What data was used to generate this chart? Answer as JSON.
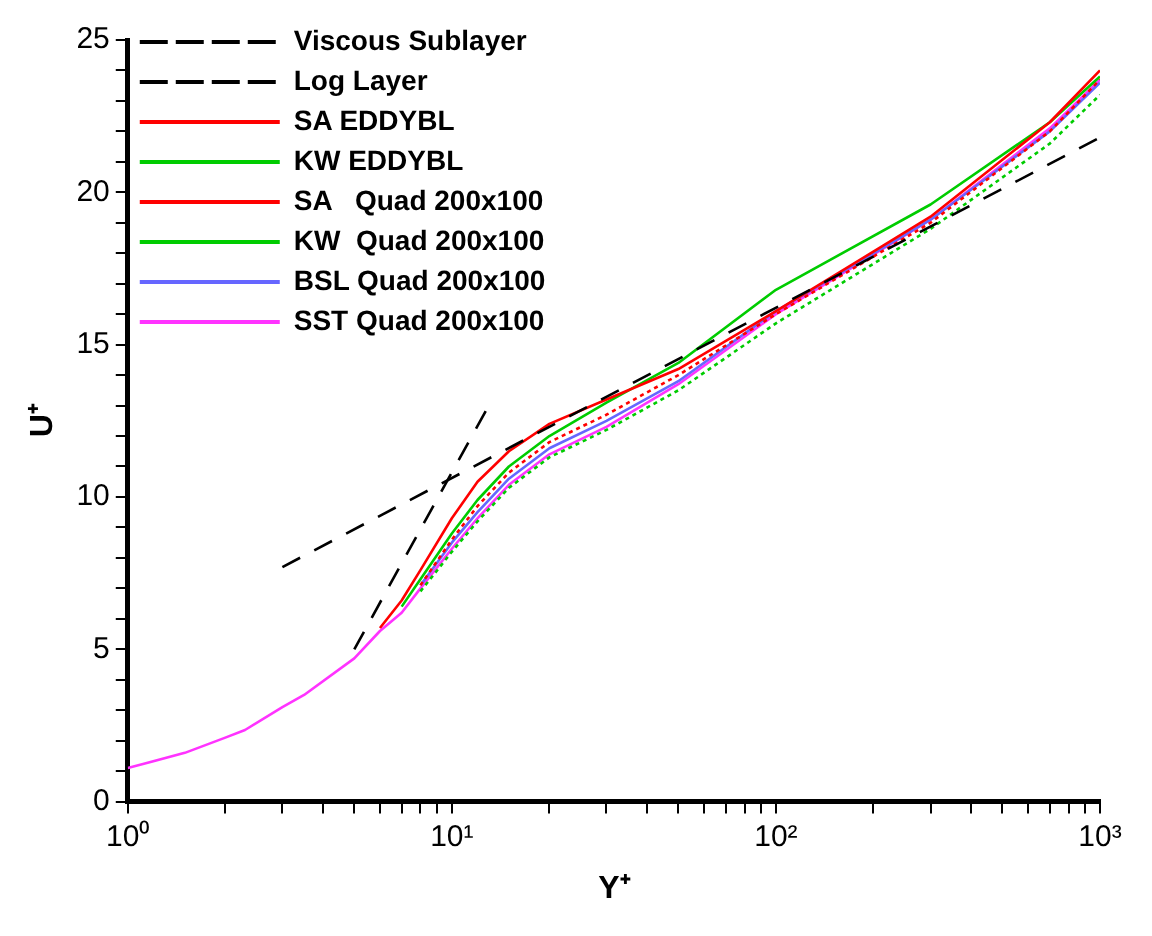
{
  "chart_data": {
    "type": "line",
    "xlabel": "Y⁺",
    "ylabel": "U⁺",
    "log": "x",
    "grid": false,
    "legend": "top left",
    "marker": "none",
    "xlim": [
      1,
      1000
    ],
    "xticks": [
      {
        "value": 1,
        "label": "10⁰"
      },
      {
        "value": 2,
        "label": null
      },
      {
        "value": 3,
        "label": null
      },
      {
        "value": 4,
        "label": null
      },
      {
        "value": 5,
        "label": null
      },
      {
        "value": 6,
        "label": null
      },
      {
        "value": 7,
        "label": null
      },
      {
        "value": 8,
        "label": null
      },
      {
        "value": 9,
        "label": null
      },
      {
        "value": 10,
        "label": "10¹"
      },
      {
        "value": 20,
        "label": null
      },
      {
        "value": 30,
        "label": null
      },
      {
        "value": 40,
        "label": null
      },
      {
        "value": 50,
        "label": null
      },
      {
        "value": 60,
        "label": null
      },
      {
        "value": 70,
        "label": null
      },
      {
        "value": 80,
        "label": null
      },
      {
        "value": 90,
        "label": null
      },
      {
        "value": 100,
        "label": "10²"
      },
      {
        "value": 200,
        "label": null
      },
      {
        "value": 300,
        "label": null
      },
      {
        "value": 400,
        "label": null
      },
      {
        "value": 500,
        "label": null
      },
      {
        "value": 600,
        "label": null
      },
      {
        "value": 700,
        "label": null
      },
      {
        "value": 800,
        "label": null
      },
      {
        "value": 900,
        "label": null
      },
      {
        "value": 1000,
        "label": "10³"
      }
    ],
    "ylim": [
      0,
      25
    ],
    "yticks": [
      0,
      {
        "value": 1,
        "label": null
      },
      {
        "value": 2,
        "label": null
      },
      {
        "value": 3,
        "label": null
      },
      {
        "value": 4,
        "label": null
      },
      5,
      {
        "value": 6,
        "label": null
      },
      {
        "value": 7,
        "label": null
      },
      {
        "value": 8,
        "label": null
      },
      {
        "value": 9,
        "label": null
      },
      10,
      {
        "value": 11,
        "label": null
      },
      {
        "value": 12,
        "label": null
      },
      {
        "value": 13,
        "label": null
      },
      {
        "value": 14,
        "label": null
      },
      15,
      {
        "value": 16,
        "label": null
      },
      {
        "value": 17,
        "label": null
      },
      {
        "value": 18,
        "label": null
      },
      {
        "value": 19,
        "label": null
      },
      20,
      {
        "value": 21,
        "label": null
      },
      {
        "value": 22,
        "label": null
      },
      {
        "value": 23,
        "label": null
      },
      {
        "value": 24,
        "label": null
      },
      25
    ],
    "series": [
      {
        "name": "Viscous Sublayer",
        "color": "#000000",
        "line_style": "dashed",
        "x": [
          5,
          13
        ],
        "values": [
          5,
          13
        ]
      },
      {
        "name": "Log Layer",
        "color": "#000000",
        "line_style": "dashed",
        "x": [
          3,
          1000
        ],
        "values": [
          7.7,
          21.8
        ]
      },
      {
        "name": "SA EDDYBL",
        "color": "#ff0000",
        "line_style": "dotted",
        "x": [
          8,
          10,
          12,
          15,
          20,
          30,
          50,
          100,
          300,
          700,
          1000
        ],
        "values": [
          7.1,
          8.6,
          9.7,
          10.8,
          11.8,
          12.7,
          14.0,
          16.0,
          19.0,
          22.0,
          23.7
        ]
      },
      {
        "name": "KW EDDYBL",
        "color": "#00cc00",
        "line_style": "dotted",
        "x": [
          8,
          10,
          12,
          15,
          20,
          30,
          50,
          100,
          300,
          700,
          1000
        ],
        "values": [
          6.9,
          8.2,
          9.2,
          10.3,
          11.3,
          12.2,
          13.5,
          15.7,
          18.8,
          21.6,
          23.2
        ]
      },
      {
        "name": "SA   Quad 200x100",
        "color": "#ff0000",
        "line_style": "solid",
        "x": [
          6,
          7,
          8,
          10,
          12,
          15,
          20,
          30,
          50,
          100,
          300,
          700,
          1000
        ],
        "values": [
          5.7,
          6.6,
          7.6,
          9.3,
          10.5,
          11.5,
          12.4,
          13.2,
          14.2,
          16.1,
          19.2,
          22.3,
          24.0
        ]
      },
      {
        "name": "KW  Quad 200x100",
        "color": "#00cc00",
        "line_style": "solid",
        "x": [
          7,
          8,
          10,
          12,
          15,
          20,
          30,
          50,
          100,
          300,
          700,
          1000
        ],
        "values": [
          6.4,
          7.3,
          8.8,
          9.9,
          11.0,
          12.0,
          13.1,
          14.4,
          16.8,
          19.6,
          22.3,
          23.8
        ]
      },
      {
        "name": "BSL Quad 200x100",
        "color": "#6666ff",
        "line_style": "solid",
        "x": [
          8,
          10,
          12,
          15,
          20,
          30,
          50,
          100,
          300,
          700,
          1000
        ],
        "values": [
          7.1,
          8.5,
          9.5,
          10.6,
          11.6,
          12.5,
          13.8,
          16.1,
          19.1,
          22.0,
          23.6
        ]
      },
      {
        "name": "SST Quad 200x100",
        "color": "#ff33ff",
        "line_style": "solid",
        "x": [
          1,
          1.5,
          2,
          2.3,
          3,
          3.5,
          5,
          6,
          7,
          8,
          10,
          12,
          15,
          20,
          30,
          50,
          100,
          300,
          700,
          1000
        ],
        "values": [
          1.1,
          1.6,
          2.1,
          2.35,
          3.1,
          3.5,
          4.7,
          5.6,
          6.2,
          7.0,
          8.3,
          9.3,
          10.4,
          11.4,
          12.3,
          13.7,
          16.0,
          19.1,
          22.1,
          23.7
        ]
      }
    ]
  }
}
